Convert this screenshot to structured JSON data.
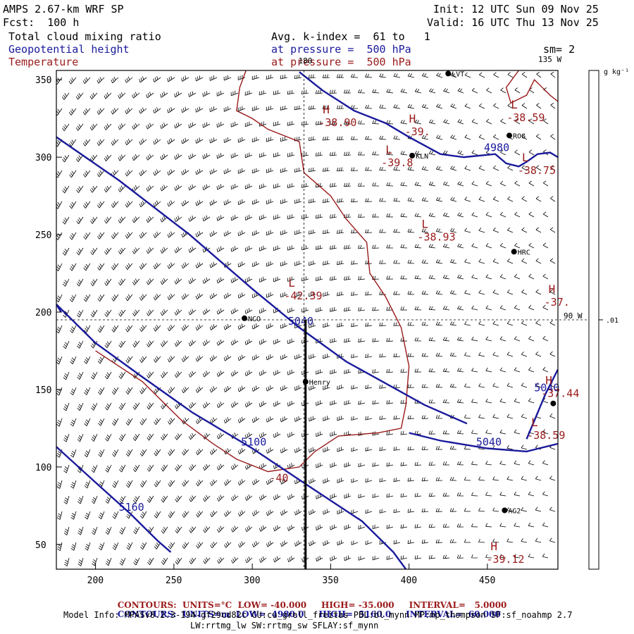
{
  "header": {
    "left": [
      "AMPS 2.67-km WRF SP",
      "Fcst:  100 h"
    ],
    "right": [
      "Init: 12 UTC Sun 09 Nov 25",
      "Valid: 16 UTC Thu 13 Nov 25"
    ],
    "fields": [
      "Total cloud mixing ratio",
      "Geopotential height",
      "Temperature"
    ],
    "avg_line": "Avg. k-index =  61 to   1",
    "pressure_height": "at pressure =  500 hPa",
    "pressure_temp": "at pressure =  500 hPa",
    "smoothing": "sm= 2"
  },
  "footer": {
    "temp_contours": {
      "label": "CONTOURS:",
      "units": "UNITS=°C",
      "low": "LOW= -40.000",
      "high": "HIGH= -35.000",
      "interval": "INTERVAL=   5.0000"
    },
    "height_contours": {
      "label": "CONTOURS:",
      "units": "UNITS=m",
      "low": "LOW=  4980.0",
      "high": "HIGH=  5160.0",
      "interval": "INTERVAL=  60.000"
    },
    "model_info_1": "Model Info: MPASv8.2.3-194-gf29cd82c CU:cu_grell_freitas PBL:bl_mynn MP:mp_thompson SF:sf_noahmp 2.7",
    "model_info_2": "LW:rrtmg_lw SW:rrtmg_sw SFLAY:sf_mynn"
  },
  "colors": {
    "height": "#1a1a9c",
    "temperature": "#9a1a1a",
    "wind": "#000000",
    "axis": "#000000"
  },
  "chart_data": {
    "type": "contour-map",
    "xlim": [
      175,
      495
    ],
    "ylim": [
      34,
      356
    ],
    "x_ticks": [
      200,
      250,
      300,
      350,
      400,
      450
    ],
    "y_ticks": [
      50,
      100,
      150,
      200,
      250,
      300,
      350
    ],
    "grid_lines": [
      {
        "axis": "x",
        "value": 333,
        "label": "180"
      },
      {
        "axis": "y",
        "value": 195,
        "label": "90 W"
      }
    ],
    "edge_labels": {
      "top_right": "135 W"
    },
    "colorbar": {
      "units": "g kg⁻¹",
      "ticks": [
        {
          "label": ".01",
          "value": 0.01
        }
      ]
    },
    "height_contours": [
      {
        "value": 5040,
        "label": "5040",
        "points": [
          [
            175,
            313
          ],
          [
            215,
            285
          ],
          [
            260,
            250
          ],
          [
            300,
            215
          ],
          [
            330,
            190
          ],
          [
            360,
            168
          ],
          [
            410,
            140
          ],
          [
            437,
            128
          ]
        ]
      },
      {
        "value": 5040,
        "label": "5040",
        "points": [
          [
            400,
            122
          ],
          [
            420,
            117
          ],
          [
            450,
            112
          ],
          [
            475,
            110
          ],
          [
            495,
            115
          ]
        ]
      },
      {
        "value": 5040,
        "label": "5040",
        "points": [
          [
            475,
            118
          ],
          [
            480,
            130
          ],
          [
            487,
            147
          ],
          [
            495,
            163
          ]
        ]
      },
      {
        "value": 4980,
        "label": "4980",
        "points": [
          [
            330,
            355
          ],
          [
            345,
            343
          ],
          [
            365,
            330
          ],
          [
            385,
            322
          ],
          [
            400,
            313
          ],
          [
            420,
            302
          ],
          [
            435,
            300
          ],
          [
            455,
            302
          ],
          [
            462,
            296
          ],
          [
            470,
            294
          ],
          [
            475,
            297
          ],
          [
            482,
            302
          ],
          [
            490,
            303
          ],
          [
            495,
            300
          ]
        ]
      },
      {
        "value": 5100,
        "label": "5100",
        "points": [
          [
            175,
            205
          ],
          [
            200,
            180
          ],
          [
            230,
            158
          ],
          [
            262,
            135
          ],
          [
            300,
            112
          ],
          [
            340,
            85
          ],
          [
            370,
            65
          ],
          [
            390,
            45
          ],
          [
            398,
            34
          ]
        ]
      },
      {
        "value": 5100,
        "label": "5100",
        "points": [
          [
            175,
            205
          ],
          [
            178,
            200
          ]
        ]
      },
      {
        "value": 5160,
        "label": "5160",
        "points": [
          [
            175,
            113
          ],
          [
            200,
            90
          ],
          [
            222,
            70
          ],
          [
            240,
            52
          ],
          [
            248,
            45
          ]
        ]
      }
    ],
    "temperature_contours": [
      {
        "value": -40,
        "label": "-40",
        "points": [
          [
            200,
            175
          ],
          [
            230,
            155
          ],
          [
            255,
            130
          ],
          [
            275,
            115
          ],
          [
            290,
            105
          ],
          [
            310,
            97
          ],
          [
            330,
            100
          ],
          [
            340,
            110
          ],
          [
            355,
            120
          ],
          [
            380,
            122
          ],
          [
            395,
            125
          ],
          [
            398,
            140
          ],
          [
            400,
            165
          ],
          [
            395,
            190
          ],
          [
            385,
            210
          ],
          [
            375,
            225
          ],
          [
            373,
            245
          ],
          [
            360,
            260
          ],
          [
            350,
            275
          ],
          [
            333,
            290
          ],
          [
            330,
            310
          ],
          [
            310,
            318
          ],
          [
            300,
            325
          ],
          [
            290,
            330
          ],
          [
            292,
            345
          ],
          [
            296,
            356
          ]
        ]
      },
      {
        "value": -35,
        "label": "",
        "points": [
          [
            470,
            356
          ],
          [
            462,
            345
          ],
          [
            465,
            335
          ],
          [
            475,
            340
          ],
          [
            480,
            350
          ],
          [
            485,
            345
          ],
          [
            490,
            340
          ],
          [
            495,
            336
          ]
        ]
      }
    ],
    "highs_lows": [
      {
        "kind": "L",
        "value": "-38.59",
        "x": 465,
        "y": 325
      },
      {
        "kind": "H",
        "value": "-38.90",
        "x": 345,
        "y": 322
      },
      {
        "kind": "H",
        "value": "-39.",
        "x": 400,
        "y": 316
      },
      {
        "kind": "L",
        "value": "-39.8",
        "x": 385,
        "y": 296
      },
      {
        "kind": "L",
        "value": "-38.75",
        "x": 472,
        "y": 291
      },
      {
        "kind": "L",
        "value": "-38.93",
        "x": 408,
        "y": 248
      },
      {
        "kind": "H",
        "value": "-37.",
        "x": 489,
        "y": 206
      },
      {
        "kind": "L",
        "value": "-42.39",
        "x": 323,
        "y": 210
      },
      {
        "kind": "H",
        "value": "-37.44",
        "x": 487,
        "y": 147
      },
      {
        "kind": "L",
        "value": "-38.59",
        "x": 478,
        "y": 120
      },
      {
        "kind": "H",
        "value": "-39.12",
        "x": 452,
        "y": 40
      }
    ],
    "stations": [
      {
        "name": "LVT",
        "x": 425,
        "y": 354
      },
      {
        "name": "ROG",
        "x": 464,
        "y": 314
      },
      {
        "name": "KLN",
        "x": 402,
        "y": 301
      },
      {
        "name": "HRC",
        "x": 467,
        "y": 239
      },
      {
        "name": "NCO",
        "x": 295,
        "y": 196
      },
      {
        "name": "Henry",
        "x": 334,
        "y": 155
      },
      {
        "name": "",
        "x": 492,
        "y": 141
      },
      {
        "name": "AG2",
        "x": 461,
        "y": 72
      }
    ],
    "cross_section": {
      "x": 334,
      "y_from": 195,
      "y_to": 34
    }
  }
}
